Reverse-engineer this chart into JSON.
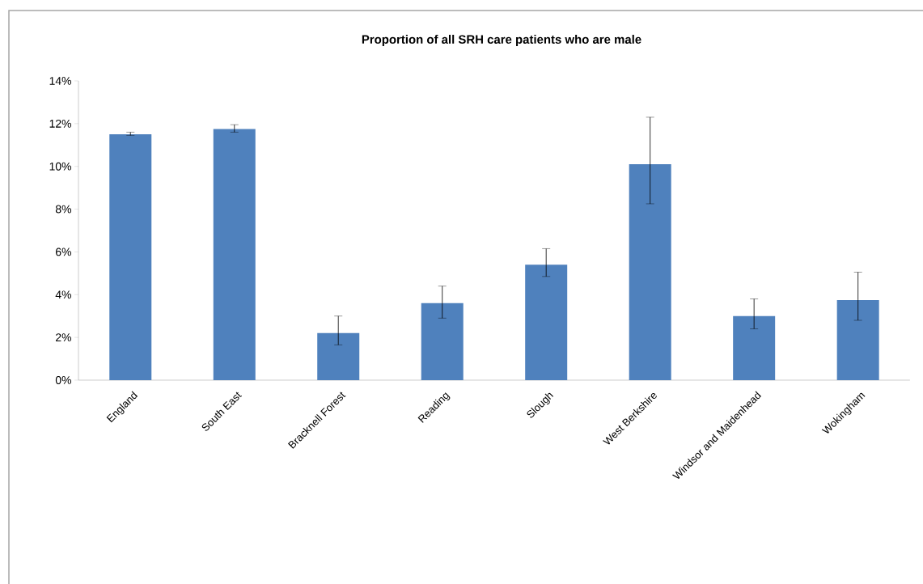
{
  "chart_data": {
    "type": "bar",
    "title": "Proportion of all SRH care patients who are male",
    "categories": [
      "England",
      "South East",
      "Bracknell Forest",
      "Reading",
      "Slough",
      "West Berkshire",
      "Windsor and Maidenhead",
      "Wokingham"
    ],
    "values": [
      11.5,
      11.75,
      2.2,
      3.6,
      5.4,
      10.1,
      3.0,
      3.75
    ],
    "errors": [
      [
        11.45,
        11.6
      ],
      [
        11.6,
        11.95
      ],
      [
        1.65,
        3.0
      ],
      [
        2.9,
        4.4
      ],
      [
        4.85,
        6.15
      ],
      [
        8.25,
        12.3
      ],
      [
        2.4,
        3.8
      ],
      [
        2.8,
        5.05
      ]
    ],
    "color": "#4f81bd",
    "ylim": [
      0,
      14
    ],
    "yticks": [
      {
        "value": 0,
        "label": "0%"
      },
      {
        "value": 2,
        "label": "2%"
      },
      {
        "value": 4,
        "label": "4%"
      },
      {
        "value": 6,
        "label": "6%"
      },
      {
        "value": 8,
        "label": "8%"
      },
      {
        "value": 10,
        "label": "10%"
      },
      {
        "value": 12,
        "label": "12%"
      },
      {
        "value": 14,
        "label": "14%"
      }
    ],
    "grid": false
  }
}
